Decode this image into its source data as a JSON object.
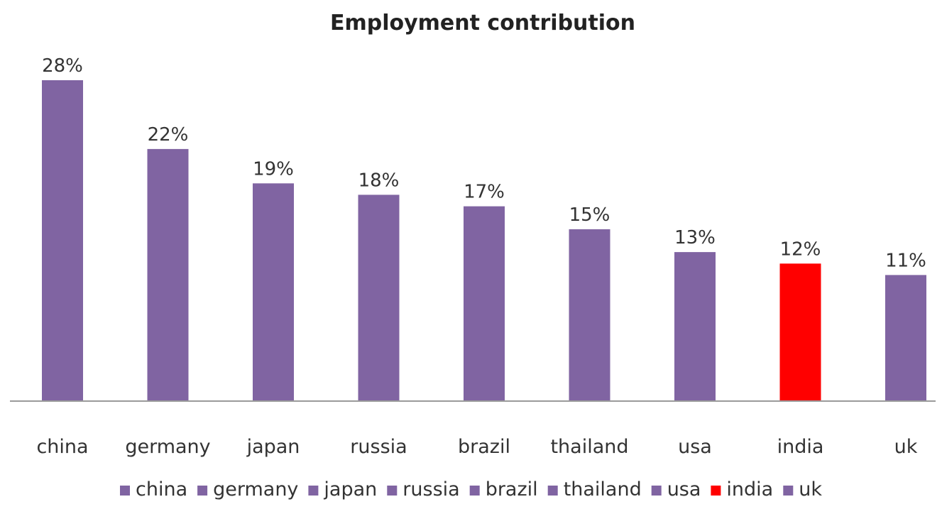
{
  "chart_data": {
    "type": "bar",
    "title": "Employment contribution",
    "xlabel": "",
    "ylabel": "",
    "categories": [
      "china",
      "germany",
      "japan",
      "russia",
      "brazil",
      "thailand",
      "usa",
      "india",
      "uk"
    ],
    "values": [
      28,
      22,
      19,
      18,
      17,
      15,
      13,
      12,
      11
    ],
    "data_labels": [
      "28%",
      "22%",
      "19%",
      "18%",
      "17%",
      "15%",
      "13%",
      "12%",
      "11%"
    ],
    "bar_colors": [
      "#8064a2",
      "#8064a2",
      "#8064a2",
      "#8064a2",
      "#8064a2",
      "#8064a2",
      "#8064a2",
      "#ff0000",
      "#8064a2"
    ],
    "legend_entries": [
      "china",
      "germany",
      "japan",
      "russia",
      "brazil",
      "thailand",
      "usa",
      "india",
      "uk"
    ],
    "legend_position": "bottom",
    "ylim": [
      0,
      28
    ],
    "grid": false,
    "axis_color": "#9a9a9a"
  }
}
